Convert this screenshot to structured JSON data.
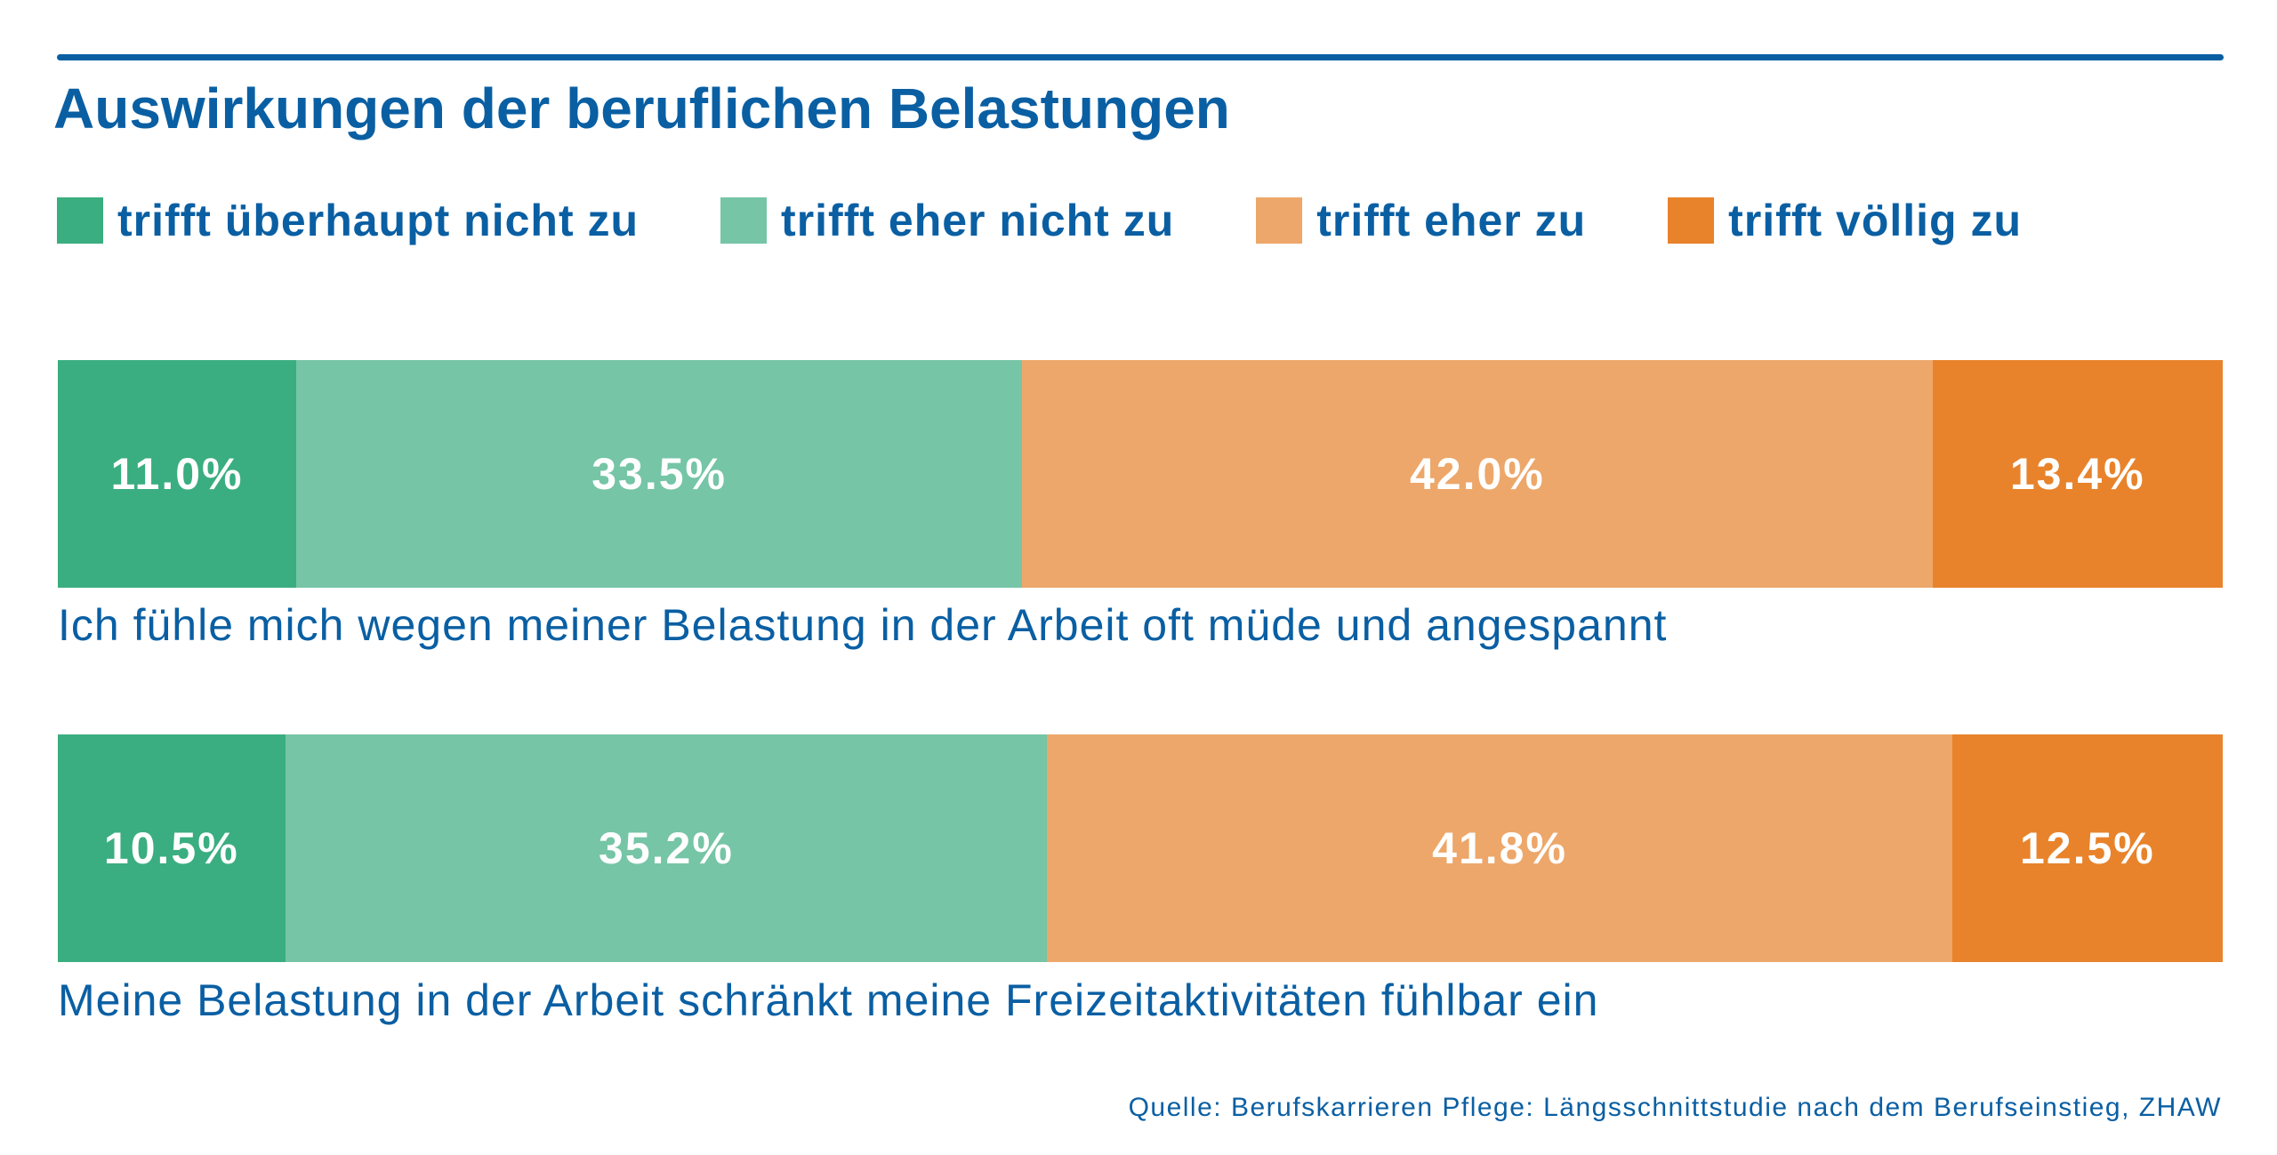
{
  "chart_data": {
    "type": "bar",
    "stacked": true,
    "orientation": "horizontal",
    "title": "Auswirkungen der beruflichen Belastungen",
    "legend_placement": "top",
    "grid": false,
    "categories": [
      "Ich fühle mich wegen meiner Belastung in der Arbeit oft müde und angespannt",
      "Meine Belastung in der Arbeit schränkt meine Freizeitaktivitäten fühlbar ein"
    ],
    "series": [
      {
        "name": "trifft überhaupt nicht zu",
        "color": "#3aae80",
        "values": [
          11.0,
          10.5
        ],
        "labels": [
          "11.0%",
          "10.5%"
        ]
      },
      {
        "name": "trifft eher nicht zu",
        "color": "#75c5a6",
        "values": [
          33.5,
          35.2
        ],
        "labels": [
          "33.5%",
          "35.2%"
        ]
      },
      {
        "name": "trifft eher zu",
        "color": "#eda76a",
        "values": [
          42.0,
          41.8
        ],
        "labels": [
          "42.0%",
          "41.8%"
        ]
      },
      {
        "name": "trifft völlig zu",
        "color": "#e8832b",
        "values": [
          13.4,
          12.5
        ],
        "labels": [
          "13.4%",
          "12.5%"
        ]
      }
    ],
    "source": "Quelle: Berufskarrieren Pflege: Längsschnittstudie nach dem Berufseinstieg, ZHAW"
  }
}
